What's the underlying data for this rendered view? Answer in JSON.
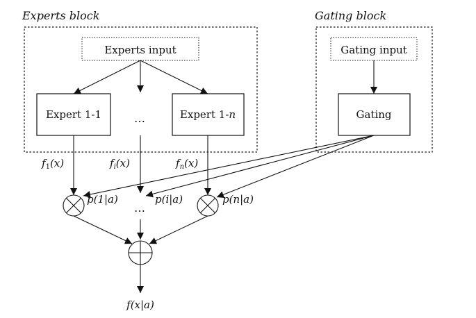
{
  "blocks": {
    "experts_block_title": "Experts block",
    "gating_block_title": "Gating block"
  },
  "nodes": {
    "experts_input": "Experts input",
    "gating_input": "Gating input",
    "expert_1": "Expert 1-1",
    "expert_n_prefix": "Expert 1-",
    "expert_n_suffix": "n",
    "ellipsis_experts": "…",
    "gating": "Gating",
    "ellipsis_products": "…"
  },
  "edge_labels": {
    "f1": "f",
    "f1_sub": "1",
    "f1_arg": "(x)",
    "fi": "f",
    "fi_sub": "i",
    "fi_arg": "(x)",
    "fn": "f",
    "fn_sub": "n",
    "fn_arg": "(x)",
    "p1": "p(1|a)",
    "pi": "p(i|a)",
    "pn": "p(n|a)",
    "output": "f(x|a)"
  }
}
